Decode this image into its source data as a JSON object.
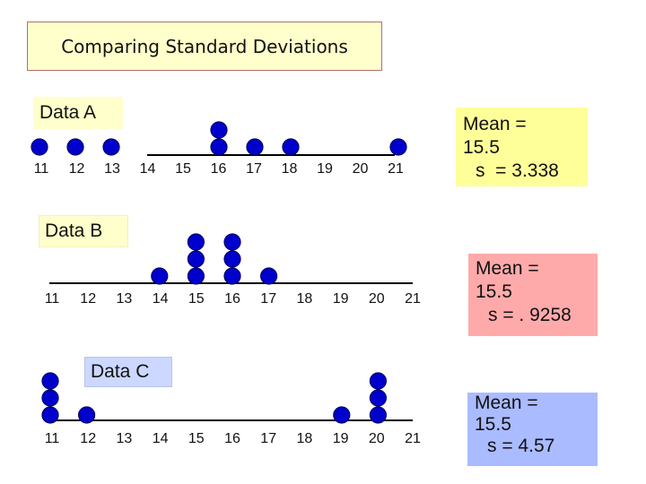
{
  "title": "Comparing Standard Deviations",
  "colors": {
    "title_bg": "#ffffcc",
    "dot_fill": "#0000cc",
    "dot_stroke": "#000066",
    "summary_a_bg": "#ffff99",
    "summary_b_bg": "#ffaaaa",
    "summary_c_bg": "#aabbff",
    "label_bg": "#ffffcc",
    "label_c_bg": "#ccd8ff"
  },
  "datasets": [
    {
      "label": "Data A",
      "mean_line1": "Mean =",
      "mean_line2": "15.5",
      "sd_line": "s  = 3.338",
      "points": {
        "11": 1,
        "12": 1,
        "13": 1,
        "16": 2,
        "17": 1,
        "18": 1,
        "21": 1
      },
      "ticks": [
        "11",
        "12",
        "13",
        "14",
        "15",
        "16",
        "17",
        "18",
        "19",
        "20",
        "21"
      ]
    },
    {
      "label": "Data B",
      "mean_line1": "Mean =",
      "mean_line2": "15.5",
      "sd_line": "s = . 9258",
      "points": {
        "14": 1,
        "15": 3,
        "16": 3,
        "17": 1
      },
      "ticks": [
        "11",
        "12",
        "13",
        "14",
        "15",
        "16",
        "17",
        "18",
        "19",
        "20",
        "21"
      ]
    },
    {
      "label": "Data C",
      "mean_line1": "Mean =",
      "mean_line2": "15.5",
      "sd_line": "s = 4.57",
      "points": {
        "11": 3,
        "12": 1,
        "19": 1,
        "20": 3
      },
      "ticks": [
        "11",
        "12",
        "13",
        "14",
        "15",
        "16",
        "17",
        "18",
        "19",
        "20",
        "21"
      ]
    }
  ]
}
